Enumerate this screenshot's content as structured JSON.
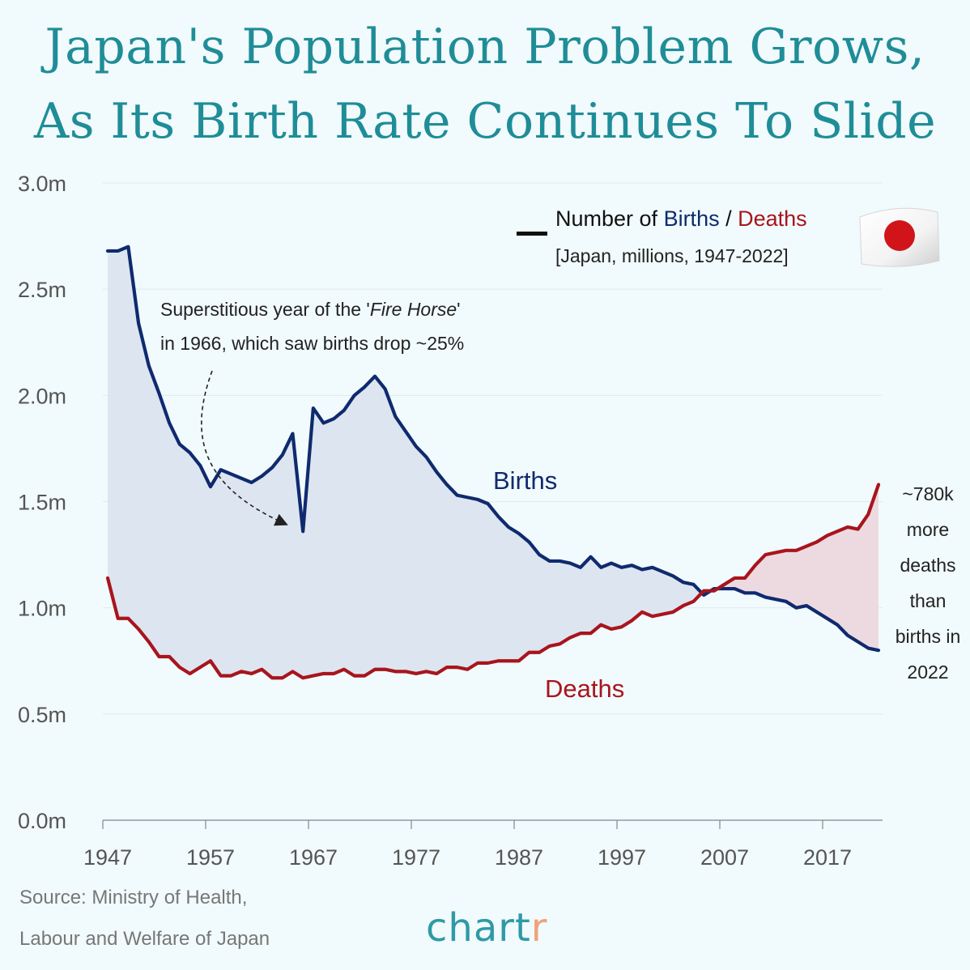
{
  "title": {
    "line1": "Japan's Population Problem Grows,",
    "line2": "As Its Birth Rate Continues To Slide"
  },
  "legend": {
    "prefix": "Number of ",
    "births_word": "Births",
    "separator": " / ",
    "deaths_word": "Deaths",
    "subtitle": "[Japan, millions, 1947-2022]",
    "flag_icon": "japan-flag-icon"
  },
  "annotations": {
    "fire_horse_line1_a": "Superstitious year of the '",
    "fire_horse_line1_em": "Fire Horse",
    "fire_horse_line1_b": "'",
    "fire_horse_line2": "in 1966, which saw births drop ~25%",
    "births_label": "Births",
    "deaths_label": "Deaths",
    "gap_lines": [
      "~780k",
      "more",
      "deaths",
      "than",
      "births in",
      "2022"
    ]
  },
  "source": {
    "line1": "Source: Ministry of Health,",
    "line2": "Labour and Welfare of Japan"
  },
  "brand": {
    "main": "chart",
    "accent": "r"
  },
  "colors": {
    "births": "#0f2a6e",
    "deaths": "#a8151d",
    "births_fill": "#dbe4ef",
    "deaths_fill": "#ecd8de",
    "title": "#1f8d97",
    "grid": "#e2eaee"
  },
  "chart_data": {
    "type": "line",
    "title": "Japan's Population Problem Grows, As Its Birth Rate Continues To Slide",
    "xlabel": "",
    "ylabel": "",
    "xlim": [
      1947,
      2022
    ],
    "ylim": [
      0,
      3.0
    ],
    "grid": true,
    "legend_position": "top-right",
    "x_ticks": [
      1947,
      1957,
      1967,
      1977,
      1987,
      1997,
      2007,
      2017
    ],
    "y_ticks": [
      0.0,
      0.5,
      1.0,
      1.5,
      2.0,
      2.5,
      3.0
    ],
    "y_tick_labels": [
      "0.0m",
      "0.5m",
      "1.0m",
      "1.5m",
      "2.0m",
      "2.5m",
      "3.0m"
    ],
    "x": [
      1947,
      1948,
      1949,
      1950,
      1951,
      1952,
      1953,
      1954,
      1955,
      1956,
      1957,
      1958,
      1959,
      1960,
      1961,
      1962,
      1963,
      1964,
      1965,
      1966,
      1967,
      1968,
      1969,
      1970,
      1971,
      1972,
      1973,
      1974,
      1975,
      1976,
      1977,
      1978,
      1979,
      1980,
      1981,
      1982,
      1983,
      1984,
      1985,
      1986,
      1987,
      1988,
      1989,
      1990,
      1991,
      1992,
      1993,
      1994,
      1995,
      1996,
      1997,
      1998,
      1999,
      2000,
      2001,
      2002,
      2003,
      2004,
      2005,
      2006,
      2007,
      2008,
      2009,
      2010,
      2011,
      2012,
      2013,
      2014,
      2015,
      2016,
      2017,
      2018,
      2019,
      2020,
      2021,
      2022
    ],
    "series": [
      {
        "name": "Births",
        "values": [
          2.68,
          2.68,
          2.7,
          2.34,
          2.14,
          2.01,
          1.87,
          1.77,
          1.73,
          1.67,
          1.57,
          1.65,
          1.63,
          1.61,
          1.59,
          1.62,
          1.66,
          1.72,
          1.82,
          1.36,
          1.94,
          1.87,
          1.89,
          1.93,
          2.0,
          2.04,
          2.09,
          2.03,
          1.9,
          1.83,
          1.76,
          1.71,
          1.64,
          1.58,
          1.53,
          1.52,
          1.51,
          1.49,
          1.43,
          1.38,
          1.35,
          1.31,
          1.25,
          1.22,
          1.22,
          1.21,
          1.19,
          1.24,
          1.19,
          1.21,
          1.19,
          1.2,
          1.18,
          1.19,
          1.17,
          1.15,
          1.12,
          1.11,
          1.06,
          1.09,
          1.09,
          1.09,
          1.07,
          1.07,
          1.05,
          1.04,
          1.03,
          1.0,
          1.01,
          0.98,
          0.95,
          0.92,
          0.87,
          0.84,
          0.81,
          0.8
        ]
      },
      {
        "name": "Deaths",
        "values": [
          1.14,
          0.95,
          0.95,
          0.9,
          0.84,
          0.77,
          0.77,
          0.72,
          0.69,
          0.72,
          0.75,
          0.68,
          0.68,
          0.7,
          0.69,
          0.71,
          0.67,
          0.67,
          0.7,
          0.67,
          0.68,
          0.69,
          0.69,
          0.71,
          0.68,
          0.68,
          0.71,
          0.71,
          0.7,
          0.7,
          0.69,
          0.7,
          0.69,
          0.72,
          0.72,
          0.71,
          0.74,
          0.74,
          0.75,
          0.75,
          0.75,
          0.79,
          0.79,
          0.82,
          0.83,
          0.86,
          0.88,
          0.88,
          0.92,
          0.9,
          0.91,
          0.94,
          0.98,
          0.96,
          0.97,
          0.98,
          1.01,
          1.03,
          1.08,
          1.08,
          1.11,
          1.14,
          1.14,
          1.2,
          1.25,
          1.26,
          1.27,
          1.27,
          1.29,
          1.31,
          1.34,
          1.36,
          1.38,
          1.37,
          1.44,
          1.58
        ]
      }
    ]
  }
}
